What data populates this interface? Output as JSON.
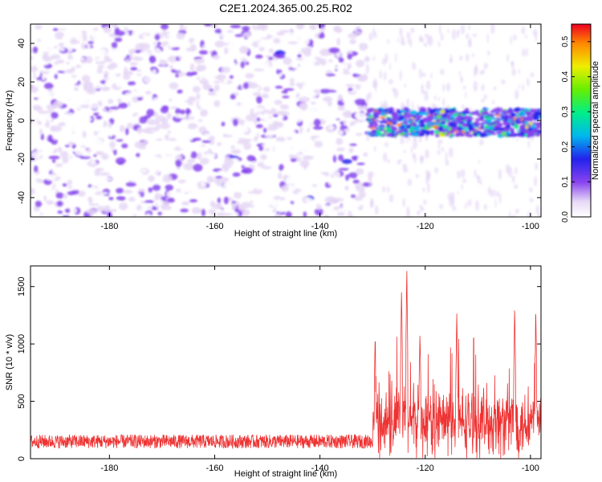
{
  "figure": {
    "title": "C2E1.2024.365.00.25.R02"
  },
  "colors": {
    "snr_line": "#ee3333",
    "axis": "#000000"
  },
  "chart_data": [
    {
      "type": "heatmap",
      "name": "spectrogram",
      "xlabel": "Height of straight line (km)",
      "ylabel": "Frequency (Hz)",
      "xlim": [
        -195,
        -98
      ],
      "ylim": [
        -50,
        50
      ],
      "xticks": [
        -180,
        -160,
        -140,
        -120,
        -100
      ],
      "yticks": [
        -40,
        -20,
        0,
        20,
        40
      ],
      "colorbar": {
        "label": "Normalized spectral amplitude",
        "range": [
          0.0,
          0.55
        ],
        "ticks": [
          0.0,
          0.1,
          0.2,
          0.3,
          0.4,
          0.5
        ]
      },
      "regions": [
        {
          "x_range": [
            -195,
            -131
          ],
          "y_range": [
            -50,
            50
          ],
          "description": "noise",
          "level": 0.05
        },
        {
          "x_range": [
            -131,
            -98
          ],
          "y_range": [
            -8,
            6
          ],
          "description": "signal band",
          "level": 0.3,
          "peak": 0.5
        }
      ]
    },
    {
      "type": "line",
      "name": "snr",
      "xlabel": "Height of straight line (km)",
      "ylabel": "SNR (10 * v/v)",
      "xlim": [
        -195,
        -98
      ],
      "ylim": [
        0,
        1680
      ],
      "xticks": [
        -180,
        -160,
        -140,
        -120,
        -100
      ],
      "yticks": [
        0,
        500,
        1000,
        1500
      ],
      "series": [
        {
          "name": "SNR",
          "segments": [
            {
              "x_range": [
                -195,
                -130
              ],
              "baseline": 150,
              "spread": 120
            },
            {
              "x_range": [
                -130,
                -98
              ],
              "baseline": 320,
              "spread": 450
            }
          ],
          "peaks": [
            {
              "x": -129.5,
              "y": 1090
            },
            {
              "x": -124.5,
              "y": 1500
            },
            {
              "x": -123.5,
              "y": 1680
            },
            {
              "x": -121,
              "y": 1100
            },
            {
              "x": -114,
              "y": 1280
            },
            {
              "x": -103,
              "y": 1330
            },
            {
              "x": -99,
              "y": 1340
            }
          ]
        }
      ]
    }
  ]
}
